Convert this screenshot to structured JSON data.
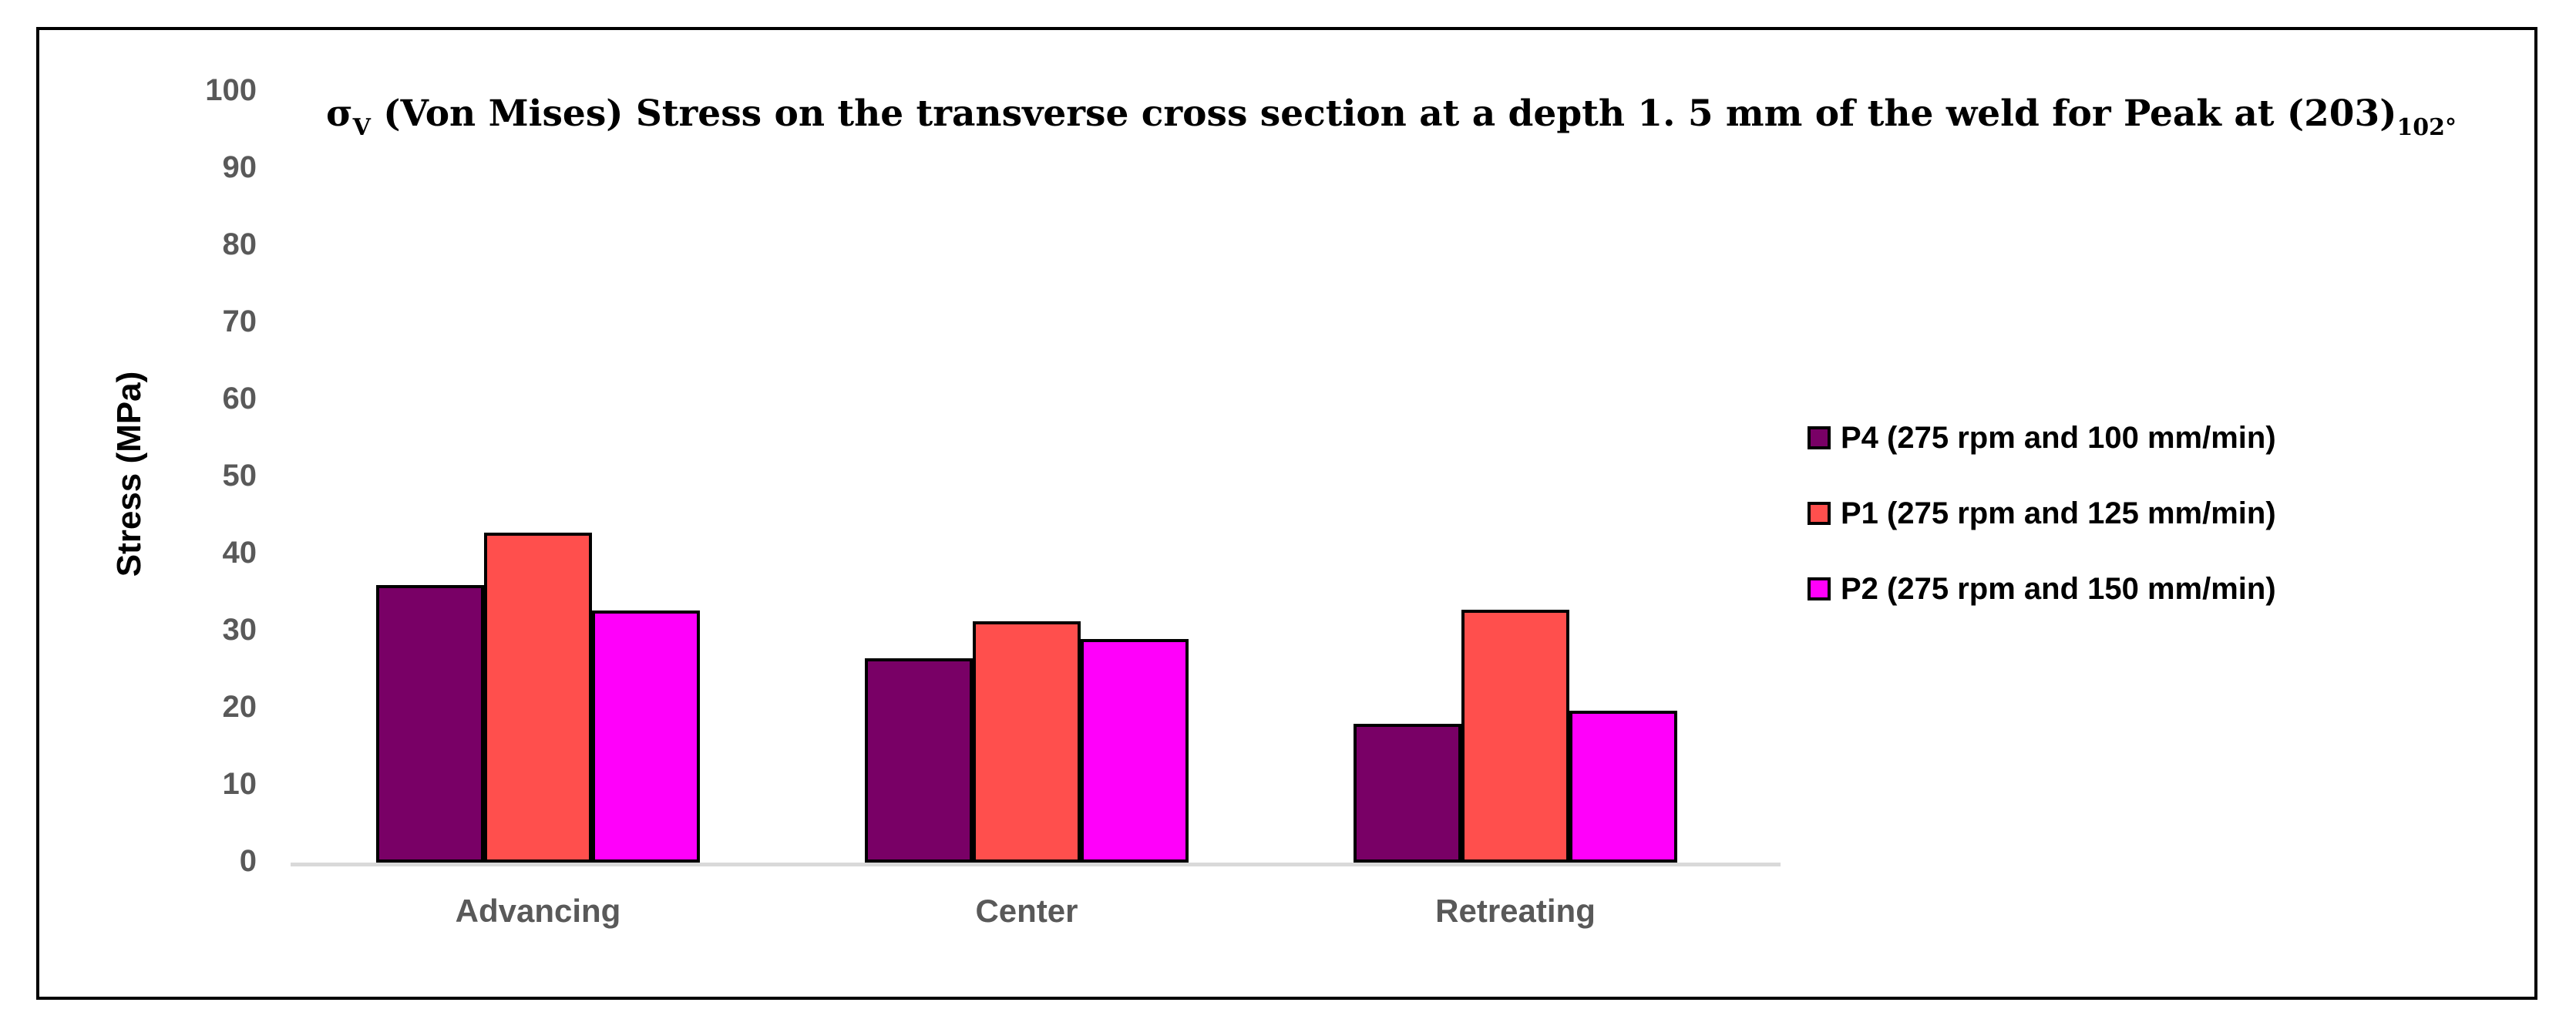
{
  "title": {
    "sigma": "σ",
    "sigma_sub": "V",
    "body": " (Von Mises) Stress on the transverse cross section at a depth 1. 5 mm of the weld for Peak at (203)",
    "tail_sub": "102°"
  },
  "y_axis": {
    "label": "Stress (MPa)",
    "ticks": [
      100,
      90,
      80,
      70,
      60,
      50,
      40,
      30,
      20,
      10,
      0
    ]
  },
  "x_axis": {
    "categories": [
      "Advancing",
      "Center",
      "Retreating"
    ]
  },
  "legend": [
    {
      "label": "P4 (275 rpm and 100 mm/min)",
      "color": "#790066"
    },
    {
      "label": "P1 (275 rpm and 125 mm/min)",
      "color": "#FF4F4D"
    },
    {
      "label": "P2 (275 rpm and 150 mm/min)",
      "color": "#FF00FA"
    }
  ],
  "chart_data": {
    "type": "bar",
    "title": "σV (Von Mises) Stress on the transverse cross section at a depth 1.5 mm of the weld for Peak at (203)102°",
    "categories": [
      "Advancing",
      "Center",
      "Retreating"
    ],
    "series": [
      {
        "name": "P4 (275 rpm and 100 mm/min)",
        "color": "#790066",
        "values": [
          36,
          26.5,
          18
        ]
      },
      {
        "name": "P1 (275 rpm and 125 mm/min)",
        "color": "#FF4F4D",
        "values": [
          42.8,
          31.3,
          32.8
        ]
      },
      {
        "name": "P2 (275 rpm and 150 mm/min)",
        "color": "#FF00FA",
        "values": [
          32.7,
          29,
          19.7
        ]
      }
    ],
    "xlabel": "",
    "ylabel": "Stress (MPa)",
    "ylim": [
      0,
      100
    ],
    "ytick_step": 10,
    "grid": false,
    "legend_position": "right",
    "bar_outline_color": "#000000",
    "axis_line_color": "#d9d9d9",
    "tick_label_color": "#595959"
  }
}
